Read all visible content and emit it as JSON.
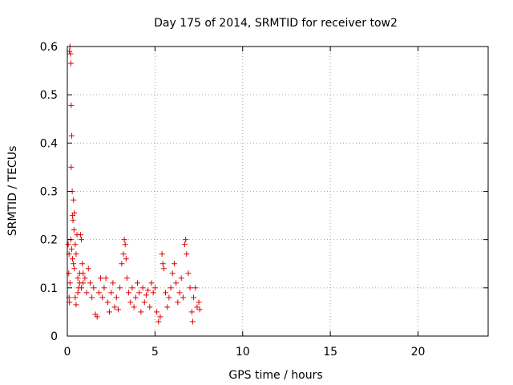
{
  "chart_data": {
    "type": "scatter",
    "title": "Day 175 of 2014, SRMTID for receiver tow2",
    "xlabel": "GPS time / hours",
    "ylabel": "SRMTID / TECUs",
    "xlim": [
      0,
      24
    ],
    "ylim": [
      0,
      0.6
    ],
    "xticks": [
      0,
      5,
      10,
      15,
      20
    ],
    "xtick_labels": [
      "0",
      "5",
      "10",
      "15",
      "20"
    ],
    "yticks": [
      0,
      0.1,
      0.2,
      0.3,
      0.4,
      0.5,
      0.6
    ],
    "ytick_labels": [
      "0",
      "0.1",
      "0.2",
      "0.3",
      "0.4",
      "0.5",
      "0.6"
    ],
    "grid": true,
    "marker": "+",
    "series": [
      {
        "name": "tow2",
        "color": "#e00000",
        "points": [
          [
            0.05,
            0.19
          ],
          [
            0.08,
            0.13
          ],
          [
            0.1,
            0.17
          ],
          [
            0.12,
            0.59
          ],
          [
            0.15,
            0.6
          ],
          [
            0.18,
            0.585
          ],
          [
            0.2,
            0.565
          ],
          [
            0.22,
            0.478
          ],
          [
            0.25,
            0.415
          ],
          [
            0.22,
            0.35
          ],
          [
            0.28,
            0.3
          ],
          [
            0.35,
            0.282
          ],
          [
            0.3,
            0.25
          ],
          [
            0.32,
            0.24
          ],
          [
            0.4,
            0.255
          ],
          [
            0.38,
            0.22
          ],
          [
            0.1,
            0.08
          ],
          [
            0.12,
            0.07
          ],
          [
            0.15,
            0.11
          ],
          [
            0.2,
            0.2
          ],
          [
            0.25,
            0.18
          ],
          [
            0.3,
            0.16
          ],
          [
            0.35,
            0.15
          ],
          [
            0.4,
            0.14
          ],
          [
            0.45,
            0.19
          ],
          [
            0.5,
            0.17
          ],
          [
            0.55,
            0.21
          ],
          [
            0.6,
            0.12
          ],
          [
            0.65,
            0.1
          ],
          [
            0.7,
            0.13
          ],
          [
            0.75,
            0.21
          ],
          [
            0.8,
            0.2
          ],
          [
            0.85,
            0.15
          ],
          [
            0.9,
            0.11
          ],
          [
            0.45,
            0.08
          ],
          [
            0.5,
            0.065
          ],
          [
            0.6,
            0.09
          ],
          [
            0.7,
            0.11
          ],
          [
            0.8,
            0.1
          ],
          [
            0.9,
            0.13
          ],
          [
            1.0,
            0.12
          ],
          [
            1.1,
            0.09
          ],
          [
            1.2,
            0.14
          ],
          [
            1.3,
            0.11
          ],
          [
            1.4,
            0.08
          ],
          [
            1.5,
            0.1
          ],
          [
            1.6,
            0.045
          ],
          [
            1.7,
            0.04
          ],
          [
            1.8,
            0.09
          ],
          [
            1.9,
            0.12
          ],
          [
            2.0,
            0.08
          ],
          [
            2.1,
            0.1
          ],
          [
            2.2,
            0.12
          ],
          [
            2.3,
            0.07
          ],
          [
            2.4,
            0.05
          ],
          [
            2.5,
            0.09
          ],
          [
            2.6,
            0.11
          ],
          [
            2.7,
            0.06
          ],
          [
            2.8,
            0.08
          ],
          [
            2.9,
            0.055
          ],
          [
            3.0,
            0.1
          ],
          [
            3.1,
            0.15
          ],
          [
            3.2,
            0.17
          ],
          [
            3.25,
            0.2
          ],
          [
            3.3,
            0.19
          ],
          [
            3.35,
            0.16
          ],
          [
            3.4,
            0.12
          ],
          [
            3.5,
            0.09
          ],
          [
            3.6,
            0.07
          ],
          [
            3.7,
            0.1
          ],
          [
            3.8,
            0.06
          ],
          [
            3.9,
            0.08
          ],
          [
            4.0,
            0.11
          ],
          [
            4.1,
            0.09
          ],
          [
            4.2,
            0.05
          ],
          [
            4.3,
            0.1
          ],
          [
            4.4,
            0.07
          ],
          [
            4.5,
            0.085
          ],
          [
            4.6,
            0.095
          ],
          [
            4.7,
            0.06
          ],
          [
            4.8,
            0.11
          ],
          [
            4.9,
            0.09
          ],
          [
            5.0,
            0.1
          ],
          [
            5.1,
            0.05
          ],
          [
            5.2,
            0.03
          ],
          [
            5.3,
            0.04
          ],
          [
            5.4,
            0.17
          ],
          [
            5.45,
            0.15
          ],
          [
            5.5,
            0.14
          ],
          [
            5.6,
            0.09
          ],
          [
            5.7,
            0.06
          ],
          [
            5.8,
            0.08
          ],
          [
            5.9,
            0.1
          ],
          [
            6.0,
            0.13
          ],
          [
            6.1,
            0.15
          ],
          [
            6.2,
            0.11
          ],
          [
            6.3,
            0.07
          ],
          [
            6.4,
            0.09
          ],
          [
            6.5,
            0.12
          ],
          [
            6.6,
            0.08
          ],
          [
            6.7,
            0.19
          ],
          [
            6.75,
            0.2
          ],
          [
            6.8,
            0.17
          ],
          [
            6.9,
            0.13
          ],
          [
            7.0,
            0.1
          ],
          [
            7.1,
            0.05
          ],
          [
            7.15,
            0.03
          ],
          [
            7.2,
            0.08
          ],
          [
            7.3,
            0.1
          ],
          [
            7.4,
            0.06
          ],
          [
            7.5,
            0.07
          ],
          [
            7.55,
            0.055
          ]
        ]
      }
    ]
  }
}
